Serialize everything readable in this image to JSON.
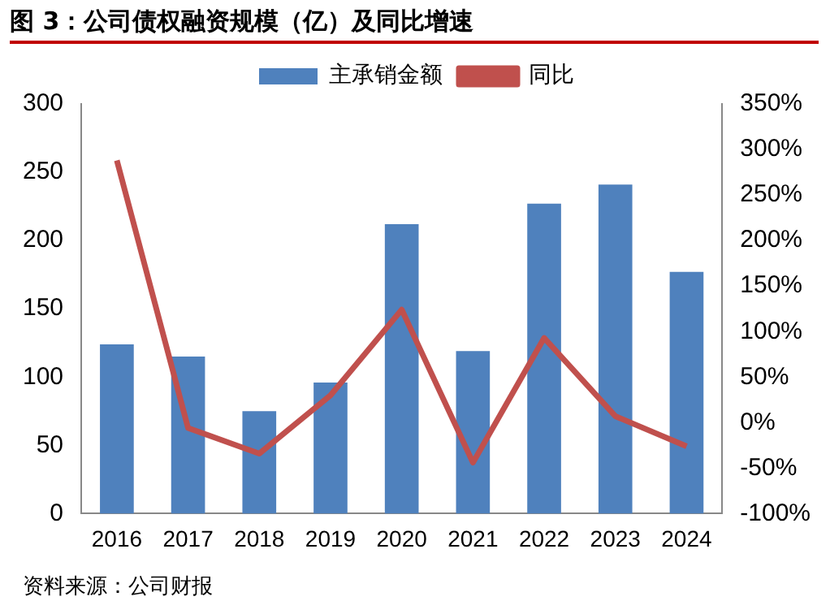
{
  "chart_data": {
    "type": "bar",
    "title": "图 3：公司债权融资规模（亿）及同比增速",
    "annotations": [
      "资料来源：公司财报"
    ],
    "categories": [
      "2016",
      "2017",
      "2018",
      "2019",
      "2020",
      "2021",
      "2022",
      "2023",
      "2024"
    ],
    "series": [
      {
        "name": "主承销金额",
        "color": "#4f81bd",
        "values": [
          124,
          115,
          75,
          96,
          212,
          119,
          227,
          241,
          177
        ]
      },
      {
        "name": "同比",
        "type": "line",
        "axis": "y2",
        "color": "#c0504d",
        "values": [
          288,
          -6,
          -34,
          30,
          124,
          -44,
          93,
          7,
          -26
        ]
      }
    ],
    "ylim": [
      0,
      300
    ],
    "yticks": [
      0,
      50,
      100,
      150,
      200,
      250,
      300
    ],
    "y2lim": [
      -100,
      350
    ],
    "y2ticks": [
      {
        "value": -100,
        "label": "-100%"
      },
      {
        "value": -50,
        "label": "-50%"
      },
      {
        "value": 0,
        "label": "0%"
      },
      {
        "value": 50,
        "label": "50%"
      },
      {
        "value": 100,
        "label": "100%"
      },
      {
        "value": 150,
        "label": "150%"
      },
      {
        "value": 200,
        "label": "200%"
      },
      {
        "value": 250,
        "label": "250%"
      },
      {
        "value": 300,
        "label": "300%"
      },
      {
        "value": 350,
        "label": "350%"
      }
    ],
    "grid": false,
    "legend": "top",
    "marker": "none"
  }
}
